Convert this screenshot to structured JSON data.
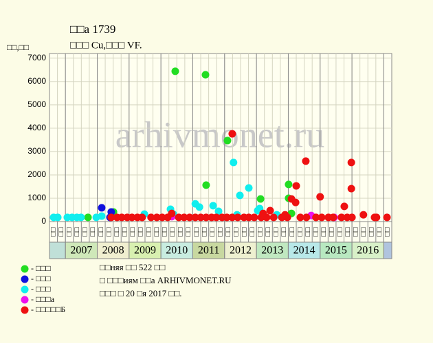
{
  "chart_data": {
    "type": "scatter",
    "title": "□□а 1739",
    "subtitle": "□□□ Cu,□□□ VF.",
    "y_label": "□□,□□",
    "watermark": "arhivmonet.ru",
    "xlim": [
      2006.5,
      2017.25
    ],
    "xticks": [
      2007,
      2008,
      2009,
      2010,
      2011,
      2012,
      2013,
      2014,
      2015,
      2016,
      2017
    ],
    "ylim": [
      0,
      7200
    ],
    "yticks": [
      0,
      1000,
      2000,
      3000,
      4000,
      5000,
      6000,
      7000
    ],
    "grid": true,
    "x_labels": [
      "□□",
      "□□",
      "□□",
      "□□",
      "□□",
      "□□",
      "□□",
      "□□",
      "□□",
      "□□",
      "□□",
      "□□",
      "□□",
      "□□",
      "□□",
      "□□",
      "□□",
      "□□",
      "□□",
      "□□",
      "□□",
      "□□",
      "□□",
      "□□",
      "□□",
      "□□",
      "□□",
      "□□",
      "□□",
      "□□",
      "□□",
      "□□",
      "□□",
      "□□",
      "□□",
      "□□",
      "□□",
      "□□",
      "□□",
      "□□",
      "□□",
      "□□",
      "□□"
    ],
    "years": [
      "2007",
      "2008",
      "2009",
      "2010",
      "2011",
      "2012",
      "2013",
      "2014",
      "2015",
      "2016"
    ],
    "year_colors": [
      "#cfe8b9",
      "#f0efd0",
      "#d8f0b0",
      "#c8ece0",
      "#c8d8a0",
      "#eef0d0",
      "#c0e8c0",
      "#b8e8e8",
      "#b8e8c0",
      "#d8f0c8"
    ],
    "lead_color": "#c0e0d8",
    "tail_color": "#b0c4de",
    "series": [
      {
        "name": "- □□□",
        "color": "#22dd22",
        "x": [
          2007.71,
          2008.51,
          2010.45,
          2011.4,
          2011.42,
          2012.09,
          2013.13,
          2014.01,
          2014.01,
          2014.1
        ],
        "values": [
          180,
          410,
          6440,
          6290,
          1560,
          3470,
          970,
          1590,
          1000,
          350
        ]
      },
      {
        "name": "- □□□",
        "color": "#1111dd",
        "x": [
          2008.14,
          2008.44,
          2008.4
        ],
        "values": [
          590,
          410,
          180
        ]
      },
      {
        "name": "- □□□",
        "color": "#11eeee",
        "x": [
          2006.63,
          2006.76,
          2007.06,
          2007.21,
          2007.36,
          2007.49,
          2007.97,
          2008.14,
          2009.48,
          2010.3,
          2010.39,
          2011.08,
          2011.21,
          2011.64,
          2011.81,
          2012.28,
          2012.48,
          2012.76,
          2013.04,
          2013.1,
          2013.64,
          2012.39
        ],
        "values": [
          180,
          180,
          180,
          180,
          180,
          180,
          180,
          235,
          320,
          530,
          320,
          760,
          620,
          680,
          440,
          2530,
          1120,
          1440,
          470,
          560,
          290,
          290
        ]
      },
      {
        "name": "- □□□а",
        "color": "#ee11ee",
        "x": [
          2010.34,
          2014.72,
          2015.44
        ],
        "values": [
          210,
          260,
          180
        ]
      },
      {
        "name": "- □□□□□Б",
        "color": "#ee1111",
        "x": [
          2008.44,
          2008.62,
          2008.77,
          2008.94,
          2009.09,
          2009.26,
          2009.41,
          2009.69,
          2009.87,
          2010.04,
          2010.21,
          2010.56,
          2010.73,
          2010.9,
          2011.08,
          2011.25,
          2011.42,
          2011.59,
          2011.74,
          2011.92,
          2012.07,
          2012.24,
          2012.41,
          2012.61,
          2012.76,
          2012.93,
          2013.15,
          2013.32,
          2013.54,
          2013.8,
          2013.97,
          2014.38,
          2014.57,
          2014.87,
          2015.05,
          2015.26,
          2015.41,
          2015.67,
          2015.85,
          2016.0,
          2016.71,
          2016.77,
          2017.1,
          2012.24,
          2014.55,
          2014.25,
          2014.1,
          2014.23,
          2015.0,
          2015.98,
          2015.98,
          2015.76,
          2016.36,
          2013.43,
          2013.21,
          2010.34,
          2013.9
        ],
        "values": [
          180,
          180,
          180,
          180,
          180,
          180,
          180,
          180,
          180,
          180,
          180,
          180,
          180,
          180,
          180,
          180,
          180,
          180,
          180,
          180,
          180,
          180,
          180,
          180,
          180,
          180,
          180,
          180,
          180,
          180,
          180,
          180,
          180,
          180,
          180,
          180,
          180,
          180,
          180,
          180,
          180,
          180,
          180,
          3760,
          2590,
          1530,
          970,
          820,
          1060,
          2530,
          1410,
          650,
          290,
          470,
          350,
          350,
          290
        ]
      }
    ],
    "footer": [
      "□□няя □□ 522 □□",
      "□ □□□иям □□а ARHIVMONET.RU",
      "□□□ □ 20 □я 2017 □□."
    ]
  }
}
